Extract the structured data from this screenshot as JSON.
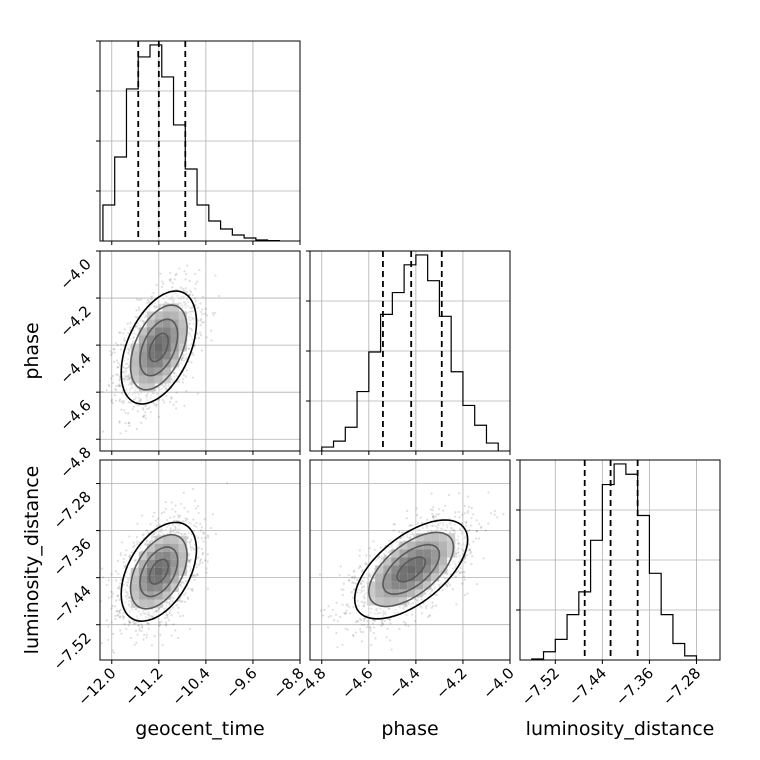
{
  "chart_data": {
    "type": "corner",
    "parameters": [
      "geocent_time",
      "phase",
      "luminosity_distance"
    ],
    "axes": {
      "geocent_time": {
        "range": [
          -12.2,
          -8.8
        ],
        "ticks": [
          -12.0,
          -11.2,
          -10.4,
          -9.6,
          -8.8
        ],
        "tick_labels": [
          "−12.0",
          "−11.2",
          "−10.4",
          "−9.6",
          "−8.8"
        ]
      },
      "phase": {
        "range": [
          -4.85,
          -4.0
        ],
        "ticks": [
          -4.8,
          -4.6,
          -4.4,
          -4.2,
          -4.0
        ],
        "tick_labels": [
          "−4.8",
          "−4.6",
          "−4.4",
          "−4.2",
          "−4.0"
        ]
      },
      "luminosity_distance": {
        "range": [
          -7.58,
          -7.24
        ],
        "ticks": [
          -7.52,
          -7.44,
          -7.36,
          -7.28
        ],
        "tick_labels": [
          "−7.52",
          "−7.44",
          "−7.36",
          "−7.28"
        ]
      }
    },
    "histograms": {
      "geocent_time": {
        "bin_edges": [
          -12.15,
          -11.95,
          -11.75,
          -11.55,
          -11.35,
          -11.15,
          -10.95,
          -10.75,
          -10.55,
          -10.35,
          -10.15,
          -9.95,
          -9.75,
          -9.55,
          -9.35,
          -9.15
        ],
        "counts": [
          18,
          42,
          76,
          92,
          98,
          82,
          58,
          36,
          18,
          10,
          6,
          3,
          1.5,
          0.5,
          0.2
        ],
        "quantile_lines": [
          -11.55,
          -11.2,
          -10.75
        ]
      },
      "phase": {
        "bin_edges": [
          -4.8,
          -4.75,
          -4.7,
          -4.65,
          -4.6,
          -4.55,
          -4.5,
          -4.45,
          -4.4,
          -4.35,
          -4.3,
          -4.25,
          -4.2,
          -4.15,
          -4.1,
          -4.05
        ],
        "counts": [
          2,
          5,
          12,
          30,
          50,
          69,
          80,
          94,
          99,
          86,
          68,
          40,
          23,
          13,
          4
        ],
        "quantile_lines": [
          -4.54,
          -4.42,
          -4.29
        ]
      },
      "luminosity_distance": {
        "bin_edges": [
          -7.56,
          -7.54,
          -7.52,
          -7.5,
          -7.48,
          -7.46,
          -7.44,
          -7.42,
          -7.4,
          -7.38,
          -7.36,
          -7.34,
          -7.32,
          -7.3,
          -7.28
        ],
        "counts": [
          0.5,
          4,
          10,
          22,
          33,
          58,
          85,
          95,
          90,
          70,
          42,
          22,
          8,
          2
        ],
        "quantile_lines": [
          -7.47,
          -7.426,
          -7.38
        ]
      }
    },
    "pairs": [
      {
        "x": "geocent_time",
        "y": "phase",
        "center": [
          -11.2,
          -4.41
        ],
        "sigma": [
          0.32,
          0.12
        ],
        "rho": 0.45
      },
      {
        "x": "geocent_time",
        "y": "luminosity_distance",
        "center": [
          -11.2,
          -7.43
        ],
        "sigma": [
          0.32,
          0.042
        ],
        "rho": 0.45
      },
      {
        "x": "phase",
        "y": "luminosity_distance",
        "center": [
          -4.42,
          -7.426
        ],
        "sigma": [
          0.12,
          0.042
        ],
        "rho": 0.6
      }
    ],
    "grid": true,
    "colors": {
      "line": "#000000",
      "grid": "#b0b0b0",
      "points": "#000000"
    }
  }
}
